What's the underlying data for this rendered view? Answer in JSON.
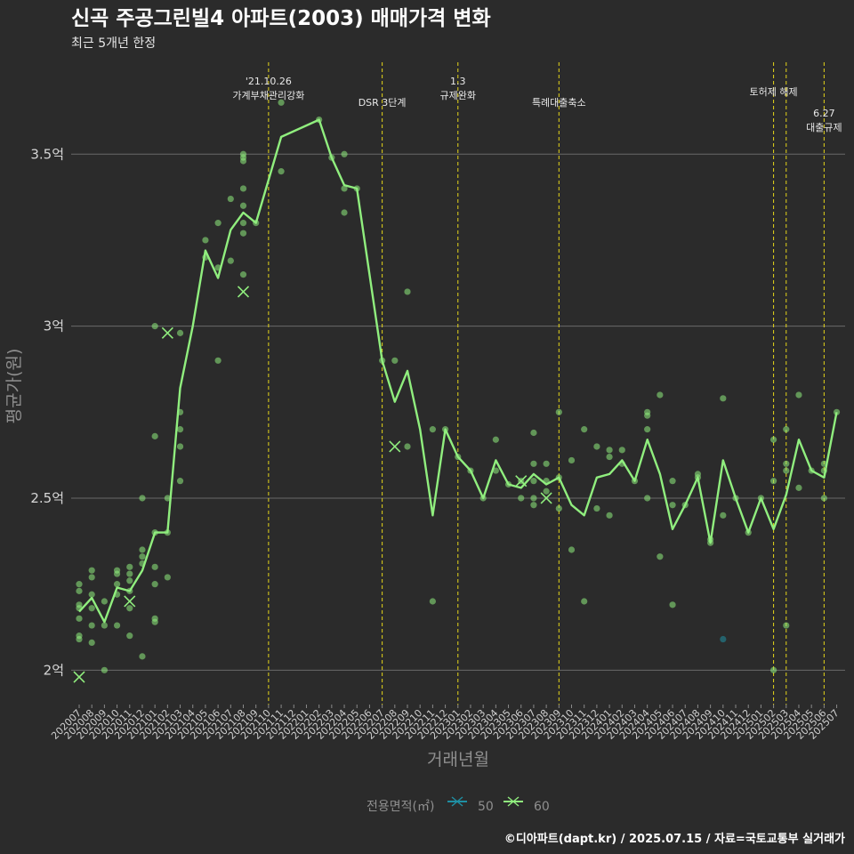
{
  "chart_data": {
    "type": "line",
    "title": "신곡 주공그린빌4 아파트(2003) 매매가격 변화",
    "subtitle": "최근 5개년 한정",
    "xlabel": "거래년월",
    "ylabel": "평균가(원)",
    "caption": "©디아파트(dapt.kr) / 2025.07.15 / 자료=국토교통부 실거래가",
    "y_unit": "억",
    "ylim": [
      1.9,
      3.78
    ],
    "yticks": [
      2,
      2.5,
      3,
      3.5
    ],
    "ytick_labels": [
      "2억",
      "2.5억",
      "3억",
      "3.5억"
    ],
    "categories": [
      "202007",
      "202008",
      "202009",
      "202010",
      "202011",
      "202012",
      "202101",
      "202102",
      "202103",
      "202104",
      "202105",
      "202106",
      "202107",
      "202108",
      "202109",
      "202110",
      "202111",
      "202112",
      "202201",
      "202202",
      "202203",
      "202204",
      "202205",
      "202206",
      "202207",
      "202208",
      "202209",
      "202210",
      "202211",
      "202212",
      "202301",
      "202302",
      "202303",
      "202304",
      "202305",
      "202306",
      "202307",
      "202308",
      "202309",
      "202310",
      "202311",
      "202312",
      "202401",
      "202402",
      "202403",
      "202404",
      "202405",
      "202406",
      "202407",
      "202408",
      "202409",
      "202410",
      "202411",
      "202412",
      "202501",
      "202502",
      "202503",
      "202504",
      "202505",
      "202506",
      "202507"
    ],
    "legend": {
      "title": "전용면적(㎡)",
      "entries": [
        {
          "name": "50",
          "color": "#1f8fa3"
        },
        {
          "name": "60",
          "color": "#90ee7e"
        }
      ]
    },
    "series": [
      {
        "name": "60",
        "color": "#90ee7e",
        "line": [
          [
            "202007",
            2.17
          ],
          [
            "202008",
            2.21
          ],
          [
            "202009",
            2.14
          ],
          [
            "202010",
            2.24
          ],
          [
            "202011",
            2.23
          ],
          [
            "202012",
            2.29
          ],
          [
            "202101",
            2.4
          ],
          [
            "202102",
            2.4
          ],
          [
            "202103",
            2.82
          ],
          [
            "202104",
            3.0
          ],
          [
            "202105",
            3.22
          ],
          [
            "202106",
            3.14
          ],
          [
            "202107",
            3.28
          ],
          [
            "202108",
            3.33
          ],
          [
            "202109",
            3.3
          ],
          [
            "202111",
            3.55
          ],
          [
            "202202",
            3.6
          ],
          [
            "202203",
            3.49
          ],
          [
            "202204",
            3.41
          ],
          [
            "202205",
            3.4
          ],
          [
            "202207",
            2.9
          ],
          [
            "202208",
            2.78
          ],
          [
            "202209",
            2.87
          ],
          [
            "202210",
            2.7
          ],
          [
            "202211",
            2.45
          ],
          [
            "202212",
            2.7
          ],
          [
            "202301",
            2.62
          ],
          [
            "202302",
            2.58
          ],
          [
            "202303",
            2.5
          ],
          [
            "202304",
            2.61
          ],
          [
            "202305",
            2.54
          ],
          [
            "202306",
            2.53
          ],
          [
            "202307",
            2.57
          ],
          [
            "202308",
            2.54
          ],
          [
            "202309",
            2.56
          ],
          [
            "202310",
            2.48
          ],
          [
            "202311",
            2.45
          ],
          [
            "202312",
            2.56
          ],
          [
            "202401",
            2.57
          ],
          [
            "202402",
            2.61
          ],
          [
            "202403",
            2.55
          ],
          [
            "202404",
            2.67
          ],
          [
            "202405",
            2.57
          ],
          [
            "202406",
            2.41
          ],
          [
            "202407",
            2.48
          ],
          [
            "202408",
            2.56
          ],
          [
            "202409",
            2.37
          ],
          [
            "202410",
            2.61
          ],
          [
            "202411",
            2.5
          ],
          [
            "202412",
            2.4
          ],
          [
            "202501",
            2.5
          ],
          [
            "202502",
            2.41
          ],
          [
            "202503",
            2.51
          ],
          [
            "202504",
            2.67
          ],
          [
            "202505",
            2.58
          ],
          [
            "202506",
            2.56
          ],
          [
            "202507",
            2.75
          ]
        ],
        "points": [
          [
            "202007",
            2.25
          ],
          [
            "202007",
            2.23
          ],
          [
            "202007",
            2.19
          ],
          [
            "202007",
            2.18
          ],
          [
            "202007",
            2.15
          ],
          [
            "202007",
            2.1
          ],
          [
            "202007",
            2.09
          ],
          [
            "202008",
            2.29
          ],
          [
            "202008",
            2.27
          ],
          [
            "202008",
            2.22
          ],
          [
            "202008",
            2.18
          ],
          [
            "202008",
            2.13
          ],
          [
            "202008",
            2.08
          ],
          [
            "202009",
            2.2
          ],
          [
            "202009",
            2.13
          ],
          [
            "202009",
            2.0
          ],
          [
            "202010",
            2.29
          ],
          [
            "202010",
            2.28
          ],
          [
            "202010",
            2.25
          ],
          [
            "202010",
            2.22
          ],
          [
            "202010",
            2.13
          ],
          [
            "202011",
            2.3
          ],
          [
            "202011",
            2.28
          ],
          [
            "202011",
            2.26
          ],
          [
            "202011",
            2.23
          ],
          [
            "202011",
            2.18
          ],
          [
            "202011",
            2.1
          ],
          [
            "202012",
            2.5
          ],
          [
            "202012",
            2.35
          ],
          [
            "202012",
            2.33
          ],
          [
            "202012",
            2.31
          ],
          [
            "202012",
            2.04
          ],
          [
            "202101",
            3.0
          ],
          [
            "202101",
            2.68
          ],
          [
            "202101",
            2.4
          ],
          [
            "202101",
            2.3
          ],
          [
            "202101",
            2.25
          ],
          [
            "202101",
            2.15
          ],
          [
            "202101",
            2.14
          ],
          [
            "202102",
            2.5
          ],
          [
            "202102",
            2.4
          ],
          [
            "202102",
            2.27
          ],
          [
            "202103",
            2.98
          ],
          [
            "202103",
            2.75
          ],
          [
            "202103",
            2.7
          ],
          [
            "202103",
            2.65
          ],
          [
            "202103",
            2.55
          ],
          [
            "202105",
            3.25
          ],
          [
            "202105",
            3.2
          ],
          [
            "202106",
            3.3
          ],
          [
            "202106",
            3.17
          ],
          [
            "202106",
            2.9
          ],
          [
            "202107",
            3.37
          ],
          [
            "202107",
            3.19
          ],
          [
            "202108",
            3.5
          ],
          [
            "202108",
            3.49
          ],
          [
            "202108",
            3.48
          ],
          [
            "202108",
            3.4
          ],
          [
            "202108",
            3.35
          ],
          [
            "202108",
            3.3
          ],
          [
            "202108",
            3.27
          ],
          [
            "202108",
            3.15
          ],
          [
            "202109",
            3.3
          ],
          [
            "202111",
            3.65
          ],
          [
            "202111",
            3.45
          ],
          [
            "202202",
            3.6
          ],
          [
            "202203",
            3.49
          ],
          [
            "202204",
            3.5
          ],
          [
            "202204",
            3.4
          ],
          [
            "202204",
            3.33
          ],
          [
            "202205",
            3.4
          ],
          [
            "202207",
            2.9
          ],
          [
            "202208",
            2.9
          ],
          [
            "202209",
            3.1
          ],
          [
            "202209",
            2.65
          ],
          [
            "202211",
            2.7
          ],
          [
            "202211",
            2.2
          ],
          [
            "202212",
            2.7
          ],
          [
            "202301",
            2.62
          ],
          [
            "202302",
            2.58
          ],
          [
            "202303",
            2.5
          ],
          [
            "202304",
            2.67
          ],
          [
            "202304",
            2.58
          ],
          [
            "202305",
            2.54
          ],
          [
            "202306",
            2.55
          ],
          [
            "202306",
            2.5
          ],
          [
            "202307",
            2.69
          ],
          [
            "202307",
            2.6
          ],
          [
            "202307",
            2.55
          ],
          [
            "202307",
            2.5
          ],
          [
            "202307",
            2.48
          ],
          [
            "202308",
            2.6
          ],
          [
            "202308",
            2.55
          ],
          [
            "202308",
            2.52
          ],
          [
            "202309",
            2.75
          ],
          [
            "202309",
            2.56
          ],
          [
            "202309",
            2.47
          ],
          [
            "202310",
            2.61
          ],
          [
            "202310",
            2.35
          ],
          [
            "202311",
            2.7
          ],
          [
            "202311",
            2.2
          ],
          [
            "202312",
            2.65
          ],
          [
            "202312",
            2.47
          ],
          [
            "202401",
            2.64
          ],
          [
            "202401",
            2.62
          ],
          [
            "202401",
            2.45
          ],
          [
            "202402",
            2.64
          ],
          [
            "202402",
            2.6
          ],
          [
            "202403",
            2.55
          ],
          [
            "202404",
            2.75
          ],
          [
            "202404",
            2.74
          ],
          [
            "202404",
            2.7
          ],
          [
            "202404",
            2.5
          ],
          [
            "202405",
            2.8
          ],
          [
            "202405",
            2.33
          ],
          [
            "202406",
            2.55
          ],
          [
            "202406",
            2.48
          ],
          [
            "202406",
            2.19
          ],
          [
            "202407",
            2.48
          ],
          [
            "202408",
            2.57
          ],
          [
            "202408",
            2.56
          ],
          [
            "202409",
            2.38
          ],
          [
            "202409",
            2.37
          ],
          [
            "202410",
            2.79
          ],
          [
            "202410",
            2.45
          ],
          [
            "202411",
            2.5
          ],
          [
            "202412",
            2.4
          ],
          [
            "202501",
            2.5
          ],
          [
            "202502",
            2.67
          ],
          [
            "202502",
            2.55
          ],
          [
            "202502",
            2.0
          ],
          [
            "202503",
            2.7
          ],
          [
            "202503",
            2.6
          ],
          [
            "202503",
            2.58
          ],
          [
            "202503",
            2.13
          ],
          [
            "202504",
            2.8
          ],
          [
            "202504",
            2.53
          ],
          [
            "202505",
            2.58
          ],
          [
            "202506",
            2.6
          ],
          [
            "202506",
            2.58
          ],
          [
            "202506",
            2.5
          ],
          [
            "202507",
            2.75
          ]
        ],
        "crosses": [
          [
            "202007",
            1.98
          ],
          [
            "202011",
            2.2
          ],
          [
            "202102",
            2.98
          ],
          [
            "202108",
            3.1
          ],
          [
            "202208",
            2.65
          ],
          [
            "202306",
            2.55
          ],
          [
            "202308",
            2.5
          ]
        ]
      },
      {
        "name": "50",
        "color": "#1f8fa3",
        "points": [
          [
            "202410",
            2.09
          ]
        ]
      }
    ],
    "events": [
      {
        "at": "202110",
        "lines": [
          "'21.10.26",
          "가계부채관리강화"
        ],
        "level": 1
      },
      {
        "at": "202207",
        "lines": [
          "DSR 3단계"
        ],
        "level": 3
      },
      {
        "at": "202301",
        "lines": [
          "1.3",
          "규제완화"
        ],
        "level": 1
      },
      {
        "at": "202309",
        "lines": [
          "특례대출축소"
        ],
        "level": 3
      },
      {
        "at": "202502",
        "lines": [
          "토허제 해제"
        ],
        "level": 2
      },
      {
        "at": "202503",
        "lines": [],
        "level": 2
      },
      {
        "at": "202506",
        "lines": [
          "6.27",
          "대출규제"
        ],
        "level": 4
      }
    ]
  }
}
